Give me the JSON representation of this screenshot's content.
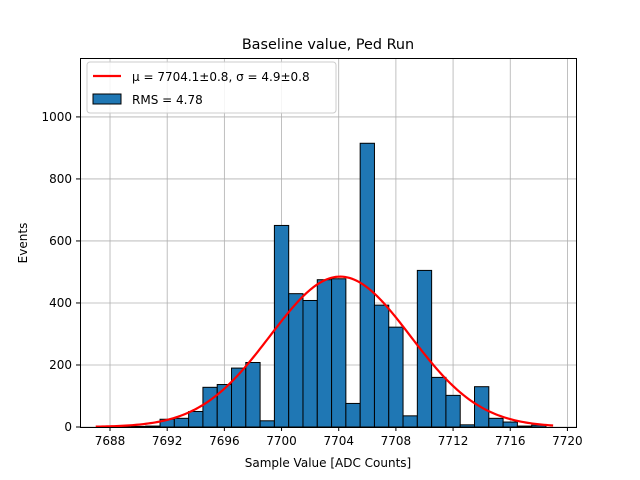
{
  "chart_data": {
    "type": "bar",
    "title": "Baseline value, Ped Run",
    "xlabel": "Sample Value [ADC Counts]",
    "ylabel": "Events",
    "xlim": [
      7685.9,
      7720.6
    ],
    "ylim": [
      0,
      1190
    ],
    "xticks": [
      7688,
      7692,
      7696,
      7700,
      7704,
      7708,
      7712,
      7716,
      7720
    ],
    "yticks": [
      0,
      200,
      400,
      600,
      800,
      1000
    ],
    "grid": true,
    "legend_position": "top-left",
    "bar_width": 1.0,
    "bar_color": "#1f77b4",
    "fit_color": "#ff0000",
    "x": [
      7689.0,
      7690.0,
      7691.0,
      7692.0,
      7693.0,
      7694.0,
      7695.0,
      7696.0,
      7697.0,
      7698.0,
      7699.0,
      7700.0,
      7701.0,
      7702.0,
      7703.0,
      7704.0,
      7705.0,
      7706.0,
      7707.0,
      7708.0,
      7709.0,
      7710.0,
      7711.0,
      7712.0,
      7713.0,
      7714.0,
      7715.0,
      7716.0,
      7717.0,
      7718.0
    ],
    "values": [
      1,
      2,
      3,
      25,
      28,
      50,
      128,
      137,
      190,
      208,
      20,
      650,
      430,
      408,
      475,
      478,
      76,
      915,
      393,
      322,
      36,
      505,
      160,
      102,
      7,
      130,
      28,
      16,
      3,
      6
    ],
    "series": [
      {
        "name": "RMS = 4.78",
        "type": "histogram",
        "values": [
          1,
          2,
          3,
          25,
          28,
          50,
          128,
          137,
          190,
          208,
          20,
          650,
          430,
          408,
          475,
          478,
          76,
          915,
          393,
          322,
          36,
          505,
          160,
          102,
          7,
          130,
          28,
          16,
          3,
          6
        ]
      },
      {
        "name": "μ = 7704.1±0.8, σ = 4.9±0.8",
        "type": "gaussian-fit",
        "amplitude": 485,
        "mu": 7704.1,
        "sigma": 4.9,
        "x_range": [
          7687.0,
          7719.0
        ]
      }
    ],
    "legend": [
      {
        "label": "μ = 7704.1±0.8, σ = 4.9±0.8",
        "kind": "line"
      },
      {
        "label": "RMS = 4.78",
        "kind": "patch"
      }
    ]
  }
}
